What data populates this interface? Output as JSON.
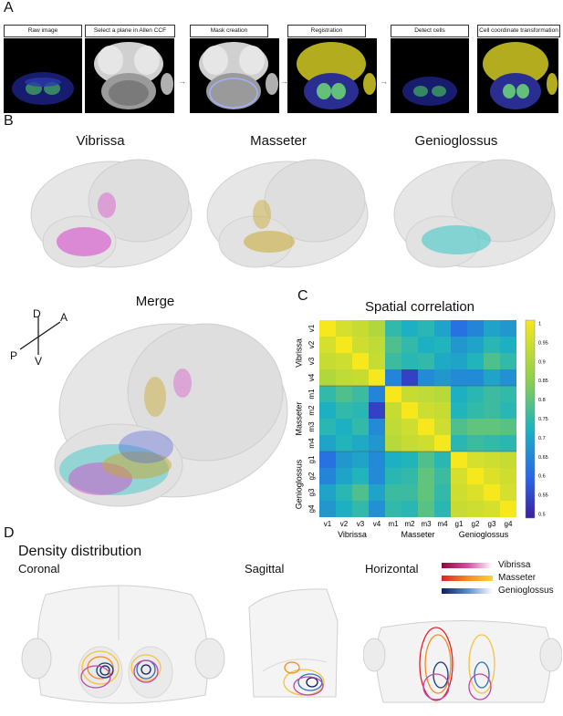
{
  "panelA": {
    "letter": "A",
    "steps": [
      "Raw image",
      "Select a plane in Allen CCF",
      "Mask creation",
      "Registration",
      "Detect cells",
      "Cell coordinate transformation"
    ]
  },
  "panelB": {
    "letter": "B",
    "titles": [
      "Vibrissa",
      "Masseter",
      "Genioglossus",
      "Merge"
    ],
    "orientation": {
      "dorsal": "D",
      "anterior": "A",
      "posterior": "P",
      "ventral": "V"
    }
  },
  "panelC": {
    "letter": "C",
    "title": "Spatial correlation"
  },
  "chart_data": {
    "type": "heatmap",
    "title": "Spatial correlation",
    "rows": [
      "v1",
      "v2",
      "v3",
      "v4",
      "m1",
      "m2",
      "m3",
      "m4",
      "g1",
      "g2",
      "g3",
      "g4"
    ],
    "cols": [
      "v1",
      "v2",
      "v3",
      "v4",
      "m1",
      "m2",
      "m3",
      "m4",
      "g1",
      "g2",
      "g3",
      "g4"
    ],
    "row_groups": [
      "Vibrissa",
      "Masseter",
      "Genioglossus"
    ],
    "col_groups": [
      "Vibrissa",
      "Masseter",
      "Genioglossus"
    ],
    "colorbar": {
      "min": 0.5,
      "max": 1,
      "ticks": [
        "1",
        "0.95",
        "0.9",
        "0.85",
        "0.8",
        "0.75",
        "0.7",
        "0.65",
        "0.6",
        "0.55",
        "0.5"
      ]
    },
    "values": [
      [
        1.0,
        0.95,
        0.93,
        0.9,
        0.75,
        0.72,
        0.74,
        0.7,
        0.62,
        0.65,
        0.7,
        0.68
      ],
      [
        0.95,
        1.0,
        0.94,
        0.92,
        0.78,
        0.75,
        0.72,
        0.73,
        0.68,
        0.7,
        0.74,
        0.72
      ],
      [
        0.93,
        0.94,
        1.0,
        0.93,
        0.76,
        0.74,
        0.75,
        0.71,
        0.7,
        0.73,
        0.78,
        0.75
      ],
      [
        0.9,
        0.92,
        0.93,
        1.0,
        0.65,
        0.55,
        0.66,
        0.68,
        0.66,
        0.66,
        0.7,
        0.67
      ],
      [
        0.75,
        0.78,
        0.76,
        0.65,
        1.0,
        0.93,
        0.92,
        0.91,
        0.72,
        0.74,
        0.76,
        0.75
      ],
      [
        0.72,
        0.75,
        0.74,
        0.55,
        0.93,
        1.0,
        0.94,
        0.93,
        0.73,
        0.75,
        0.76,
        0.74
      ],
      [
        0.74,
        0.72,
        0.75,
        0.66,
        0.92,
        0.94,
        1.0,
        0.94,
        0.78,
        0.8,
        0.8,
        0.79
      ],
      [
        0.7,
        0.73,
        0.71,
        0.68,
        0.91,
        0.93,
        0.94,
        1.0,
        0.74,
        0.76,
        0.75,
        0.74
      ],
      [
        0.62,
        0.68,
        0.7,
        0.66,
        0.72,
        0.73,
        0.78,
        0.74,
        1.0,
        0.95,
        0.94,
        0.93
      ],
      [
        0.65,
        0.7,
        0.73,
        0.66,
        0.74,
        0.75,
        0.8,
        0.76,
        0.95,
        1.0,
        0.96,
        0.94
      ],
      [
        0.7,
        0.74,
        0.78,
        0.7,
        0.76,
        0.76,
        0.8,
        0.75,
        0.94,
        0.96,
        1.0,
        0.95
      ],
      [
        0.68,
        0.72,
        0.75,
        0.67,
        0.75,
        0.74,
        0.79,
        0.74,
        0.93,
        0.94,
        0.95,
        1.0
      ]
    ]
  },
  "panelD": {
    "letter": "D",
    "title": "Density distribution",
    "views": [
      "Coronal",
      "Sagittal",
      "Horizontal"
    ],
    "legend": [
      {
        "label": "Vibrissa",
        "from": "#8b0a3c",
        "to": "#ffffff"
      },
      {
        "label": "Masseter",
        "from": "#e0202a",
        "to": "#ffd23c"
      },
      {
        "label": "Genioglossus",
        "from": "#0d1f5c",
        "to": "#ffffff"
      }
    ]
  }
}
